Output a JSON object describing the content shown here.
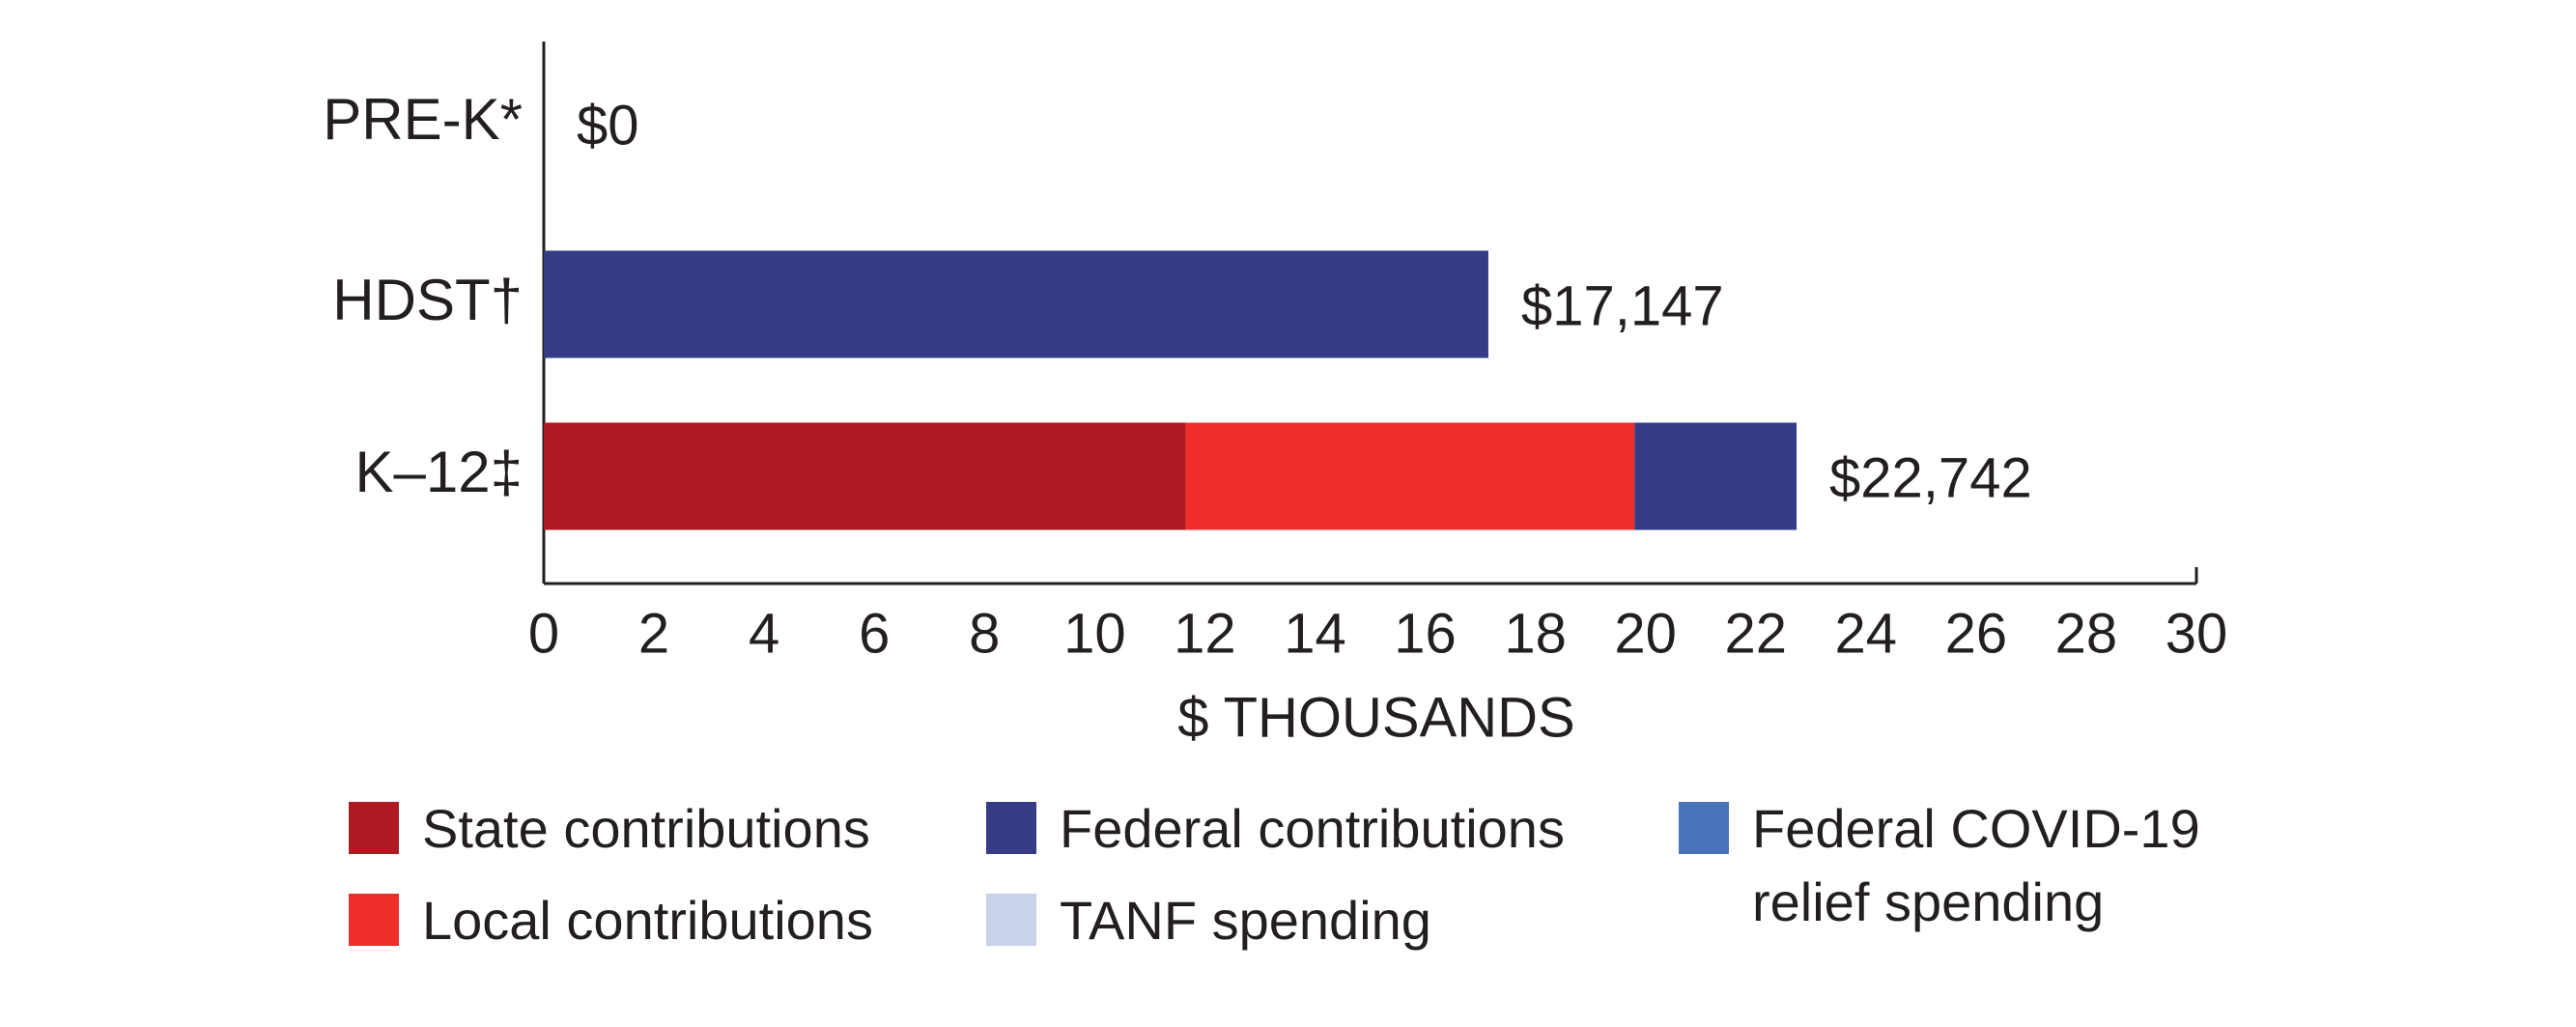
{
  "chart_data": {
    "type": "bar",
    "orientation": "horizontal",
    "stacked": true,
    "categories": [
      "PRE-K*",
      "HDST†",
      "K–12‡"
    ],
    "series": [
      {
        "name": "State contributions",
        "color": "#ad1a22",
        "values": [
          0,
          0,
          11.65
        ]
      },
      {
        "name": "Local contributions",
        "color": "#ee2d2d",
        "values": [
          0,
          0,
          8.15
        ]
      },
      {
        "name": "Federal contributions",
        "color": "#343c86",
        "values": [
          0,
          17.147,
          2.942
        ]
      },
      {
        "name": "TANF spending",
        "color": "#c8d3ea",
        "values": [
          0,
          0,
          0
        ]
      },
      {
        "name": "Federal COVID-19 relief spending",
        "color": "#4a72b8",
        "values": [
          0,
          0,
          0
        ]
      }
    ],
    "totals": {
      "values": [
        0,
        17.147,
        22.742
      ],
      "value_labels": [
        "$0",
        "$17,147",
        "$22,742"
      ]
    },
    "xlabel": "$ THOUSANDS",
    "xlim": [
      0,
      30
    ],
    "xticks": [
      0,
      2,
      4,
      6,
      8,
      10,
      12,
      14,
      16,
      18,
      20,
      22,
      24,
      26,
      28,
      30
    ]
  }
}
